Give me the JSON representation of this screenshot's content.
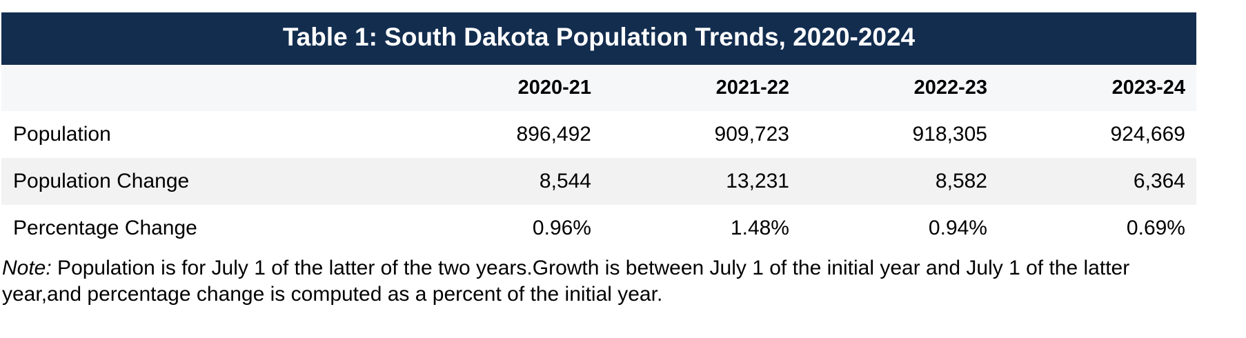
{
  "table": {
    "title": "Table 1: South Dakota Population Trends, 2020-2024",
    "columns": [
      "",
      "2020-21",
      "2021-22",
      "2022-23",
      "2023-24"
    ],
    "rows": [
      {
        "label": "Population",
        "values": [
          "896,492",
          "909,723",
          "918,305",
          "924,669"
        ]
      },
      {
        "label": "Population Change",
        "values": [
          "8,544",
          "13,231",
          "8,582",
          "6,364"
        ]
      },
      {
        "label": "Percentage Change",
        "values": [
          "0.96%",
          "1.48%",
          "0.94%",
          "0.69%"
        ]
      }
    ]
  },
  "note": {
    "label": "Note:",
    "text": " Population is for July 1 of the latter of the two years.Growth is between July 1 of the initial year and July 1 of the latter year,and percentage change is computed as a percent of the initial year."
  },
  "colors": {
    "title_bar": "#132d4f",
    "header_row": "#f6f7f9",
    "striped_row": "#f2f2f2"
  }
}
